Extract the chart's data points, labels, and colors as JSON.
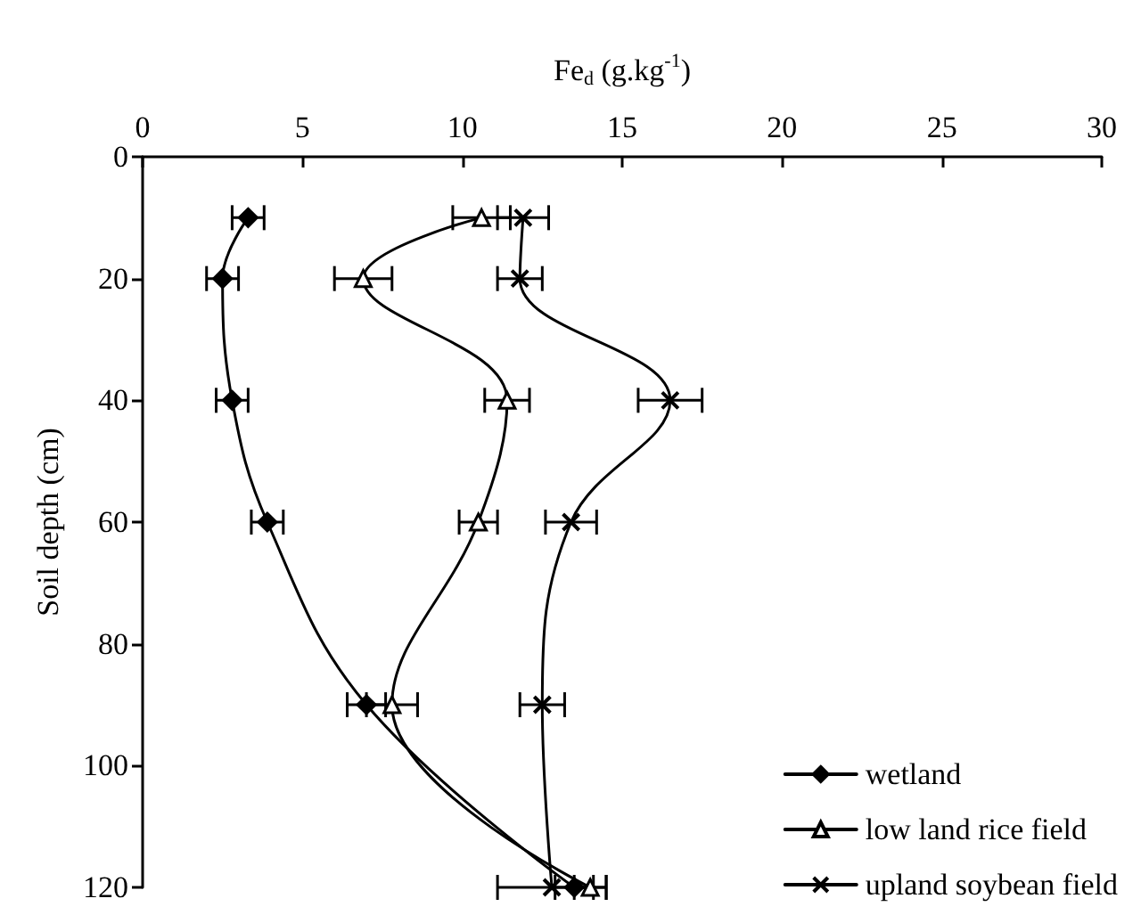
{
  "chart_data": {
    "type": "line",
    "xlabel": "Fe$_{d}$ (g.kg$^{-1}$)",
    "ylabel": "Soil depth (cm)",
    "series": [
      {
        "name": "wetland",
        "color": "#000000",
        "marker": "diamond",
        "x": [
          3.3,
          2.5,
          2.8,
          3.9,
          7.0,
          13.5
        ],
        "values": [
          10,
          20,
          40,
          60,
          90,
          120
        ],
        "xerrors": [
          0.5,
          0.5,
          0.5,
          0.5,
          0.6,
          0.6
        ]
      },
      {
        "name": "low land rice field",
        "color": "#000000",
        "marker": "triangle",
        "x": [
          10.6,
          6.9,
          11.4,
          10.5,
          7.8,
          14.0
        ],
        "values": [
          10,
          20,
          40,
          60,
          90,
          120
        ],
        "xerrors": [
          0.9,
          0.9,
          0.7,
          0.6,
          0.8,
          0.5
        ]
      },
      {
        "name": "upland soybean field",
        "color": "#000000",
        "marker": "cross",
        "x": [
          11.9,
          11.8,
          16.5,
          13.4,
          12.5,
          12.8
        ],
        "values": [
          10,
          20,
          40,
          60,
          90,
          120
        ],
        "xerrors": [
          0.8,
          0.7,
          1.0,
          0.8,
          0.7,
          1.7
        ]
      }
    ],
    "xlim": [
      0,
      30
    ],
    "xticks": [
      0,
      5,
      10,
      15,
      20,
      25,
      30
    ],
    "ylim": [
      120,
      0
    ],
    "yticks": [
      0,
      20,
      40,
      60,
      80,
      100,
      120
    ],
    "grid": false,
    "legend": "bottom right",
    "line_style": "solid"
  }
}
